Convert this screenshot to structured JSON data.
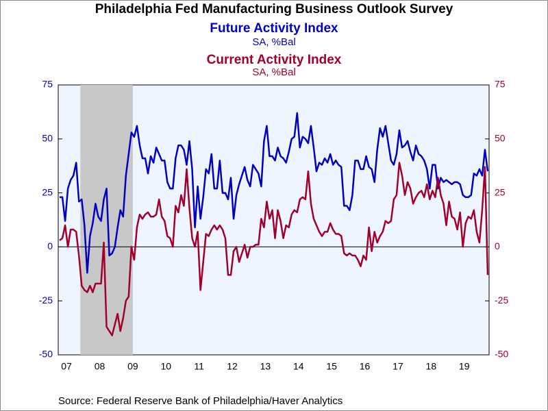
{
  "chart_data": {
    "type": "line",
    "title": "Philadelphia Fed Manufacturing Business Outlook Survey",
    "subtitles": [
      {
        "text": "Future Activity Index",
        "color": "#0000c0"
      },
      {
        "text": "SA, %Bal",
        "color": "#0000c0"
      },
      {
        "text": "Current Activity Index",
        "color": "#a0002a"
      },
      {
        "text": "SA, %Bal",
        "color": "#a0002a"
      }
    ],
    "source": "Source:  Federal Reserve Bank of Philadelphia/Haver Analytics",
    "categories": [
      null,
      null,
      null,
      "07",
      null,
      null,
      null,
      null,
      null,
      null,
      null,
      null,
      null,
      null,
      null,
      "08",
      null,
      null,
      null,
      null,
      null,
      null,
      null,
      null,
      null,
      null,
      null,
      "09",
      null,
      null,
      null,
      null,
      null,
      null,
      null,
      null,
      null,
      null,
      null,
      "10",
      null,
      null,
      null,
      null,
      null,
      null,
      null,
      null,
      null,
      null,
      null,
      "11",
      null,
      null,
      null,
      null,
      null,
      null,
      null,
      null,
      null,
      null,
      null,
      "12",
      null,
      null,
      null,
      null,
      null,
      null,
      null,
      null,
      null,
      null,
      null,
      "13",
      null,
      null,
      null,
      null,
      null,
      null,
      null,
      null,
      null,
      null,
      null,
      "14",
      null,
      null,
      null,
      null,
      null,
      null,
      null,
      null,
      null,
      null,
      null,
      "15",
      null,
      null,
      null,
      null,
      null,
      null,
      null,
      null,
      null,
      null,
      null,
      "16",
      null,
      null,
      null,
      null,
      null,
      null,
      null,
      null,
      null,
      null,
      null,
      "17",
      null,
      null,
      null,
      null,
      null,
      null,
      null,
      null,
      null,
      null,
      null,
      "18",
      null,
      null,
      null,
      null,
      null,
      null,
      null,
      null,
      null,
      null,
      null,
      "19",
      null,
      null,
      null,
      null,
      null,
      null,
      null,
      null
    ],
    "series": [
      {
        "name": "Future Activity Index",
        "color": "#0000c0",
        "values": [
          23,
          23,
          12,
          27,
          31,
          33,
          39,
          21,
          22,
          10,
          -12,
          5,
          11,
          20,
          14,
          12,
          22,
          27,
          -4,
          -3,
          0,
          9,
          17,
          14,
          33,
          43,
          53,
          51,
          56,
          47,
          41,
          41,
          34,
          42,
          39,
          46,
          43,
          40,
          40,
          30,
          27,
          27,
          41,
          47,
          47,
          45,
          38,
          49,
          36,
          9,
          28,
          13,
          23,
          36,
          34,
          43,
          27,
          27,
          40,
          25,
          25,
          22,
          32,
          13,
          24,
          29,
          33,
          37,
          31,
          28,
          38,
          36,
          34,
          28,
          49,
          56,
          42,
          42,
          40,
          46,
          42,
          41,
          39,
          44,
          50,
          51,
          62,
          46,
          51,
          50,
          48,
          56,
          46,
          35,
          39,
          38,
          41,
          39,
          43,
          38,
          40,
          38,
          37,
          19,
          19,
          17,
          24,
          40,
          40,
          36,
          36,
          42,
          37,
          36,
          30,
          45,
          55,
          51,
          56,
          48,
          40,
          38,
          43,
          54,
          46,
          47,
          49,
          44,
          40,
          47,
          43,
          42,
          40,
          36,
          27,
          38,
          38,
          27,
          32,
          30,
          31,
          30,
          29,
          30,
          30,
          29,
          24,
          23,
          23,
          24,
          34,
          33,
          36,
          33,
          45,
          35
        ]
      },
      {
        "name": "Current Activity Index",
        "color": "#a0002a",
        "axis": "y2",
        "values": [
          3,
          4,
          10,
          0,
          8,
          8,
          7,
          -4,
          -18,
          -20,
          -21,
          -18,
          -21,
          -17,
          -17,
          -17,
          2,
          -37,
          -39,
          -41,
          -36,
          -31,
          -39,
          -33,
          -25,
          -23,
          0,
          -6,
          9,
          15,
          13,
          15,
          16,
          14,
          14,
          15,
          22,
          14,
          12,
          5,
          4,
          0,
          19,
          16,
          24,
          19,
          36,
          18,
          4,
          0,
          7,
          -20,
          -7,
          6,
          5,
          8,
          10,
          8,
          10,
          8,
          4,
          -13,
          -13,
          -2,
          0,
          -7,
          -3,
          1,
          -5,
          0,
          0,
          1,
          1,
          13,
          9,
          21,
          13,
          17,
          4,
          17,
          12,
          4,
          10,
          9,
          15,
          17,
          16,
          22,
          23,
          22,
          35,
          20,
          13,
          10,
          7,
          5,
          7,
          7,
          11,
          8,
          6,
          6,
          5,
          -3,
          -4,
          -3,
          -4,
          -4,
          -6,
          -9,
          -4,
          -6,
          9,
          -2,
          7,
          2,
          5,
          7,
          12,
          11,
          12,
          22,
          24,
          39,
          33,
          24,
          30,
          27,
          20,
          23,
          25,
          26,
          23,
          29,
          22,
          26,
          23,
          32,
          24,
          20,
          10,
          21,
          14,
          13,
          8,
          16,
          0,
          11,
          14,
          13,
          17,
          7,
          2,
          17,
          37,
          -13
        ]
      }
    ],
    "recession": [
      8,
      26
    ],
    "ylim": [
      -50,
      75
    ],
    "yticks": [
      -50,
      -25,
      0,
      25,
      50,
      75
    ],
    "y2lim": [
      -50,
      75
    ],
    "y2ticks": [
      -50,
      -25,
      0,
      25,
      50,
      75
    ]
  }
}
